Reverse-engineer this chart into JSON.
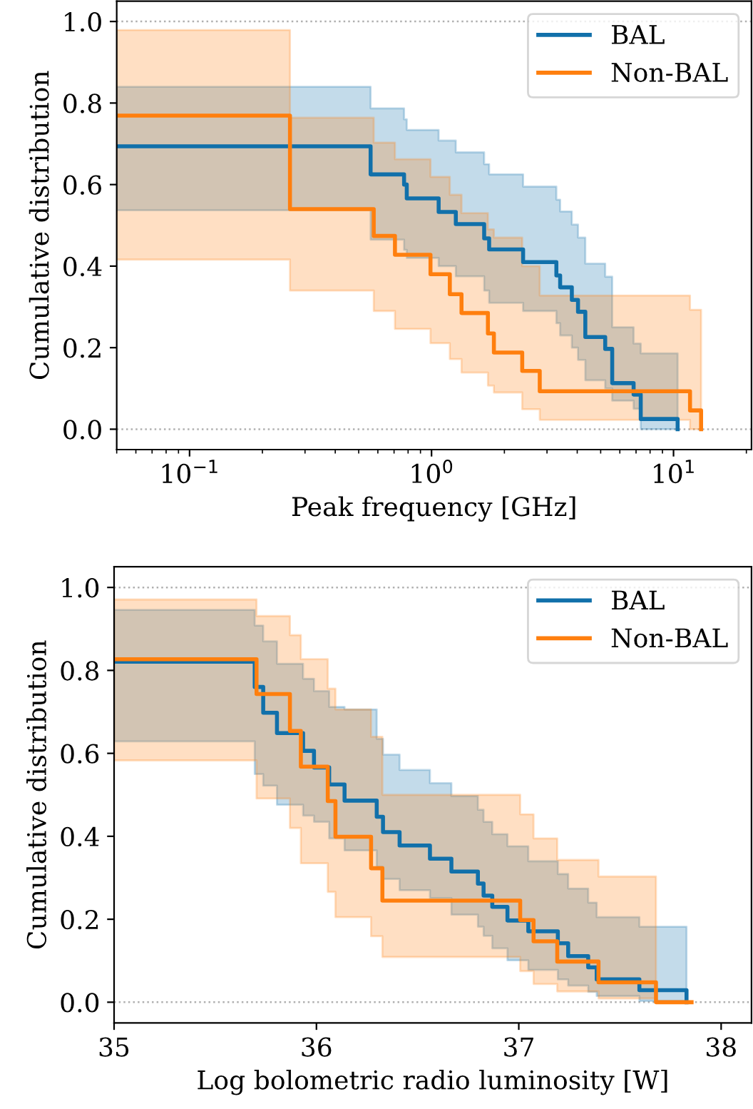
{
  "chart_data": [
    {
      "type": "step",
      "xlabel": "Peak frequency [GHz]",
      "ylabel": "Cumulative distribution",
      "log": "x",
      "legend": "top right",
      "xlim": [
        0.05,
        21
      ],
      "xticks": [
        {
          "value": 0.1,
          "label": "10$^{−1}$"
        },
        {
          "value": 1,
          "label": "10$^{0}$"
        },
        {
          "value": 10,
          "label": "10$^{1}$"
        }
      ],
      "ylim": [
        -0.05,
        1.05
      ],
      "yticks": [
        {
          "value": 0,
          "label": "0.0"
        },
        {
          "value": 0.2,
          "label": "0.2"
        },
        {
          "value": 0.4,
          "label": "0.4"
        },
        {
          "value": 0.6,
          "label": "0.6"
        },
        {
          "value": 0.8,
          "label": "0.8"
        },
        {
          "value": 1,
          "label": "1.0"
        }
      ],
      "ref_lines": [
        {
          "axis": "y",
          "value": 0,
          "color": "#b0b0b0",
          "line_style": "dotted"
        },
        {
          "axis": "y",
          "value": 1,
          "color": "#b0b0b0",
          "line_style": "dotted"
        }
      ],
      "series": [
        {
          "name": "BAL",
          "color": "#1170aa",
          "x": [
            0.05,
            0.56,
            0.77,
            0.79,
            1.07,
            1.26,
            1.65,
            1.73,
            2.39,
            3.28,
            3.4,
            3.8,
            4.03,
            4.32,
            5.22,
            5.58,
            6.84,
            7.32,
            10.4
          ],
          "values": [
            0.694,
            0.625,
            0.6,
            0.566,
            0.533,
            0.503,
            0.468,
            0.441,
            0.41,
            0.377,
            0.348,
            0.317,
            0.288,
            0.226,
            0.197,
            0.113,
            0.085,
            0.025,
            0.0
          ],
          "upper": [
            0.84,
            0.787,
            0.76,
            0.734,
            0.708,
            0.679,
            0.65,
            0.625,
            0.595,
            0.563,
            0.534,
            0.502,
            0.47,
            0.406,
            0.374,
            0.25,
            0.21,
            0.186,
            0.0
          ],
          "lower": [
            0.537,
            0.465,
            0.44,
            0.42,
            0.4,
            0.375,
            0.34,
            0.31,
            0.29,
            0.26,
            0.23,
            0.2,
            0.17,
            0.12,
            0.1,
            0.07,
            0.05,
            0.0,
            0.0
          ]
        },
        {
          "name": "Non-BAL",
          "color": "#ff7f0e",
          "x": [
            0.05,
            0.26,
            0.577,
            0.706,
            0.99,
            1.19,
            1.33,
            1.71,
            1.81,
            2.37,
            2.8,
            11.7,
            13.0
          ],
          "values": [
            0.769,
            0.54,
            0.474,
            0.428,
            0.38,
            0.331,
            0.285,
            0.235,
            0.188,
            0.143,
            0.093,
            0.046,
            0.0
          ],
          "upper": [
            0.979,
            0.764,
            0.703,
            0.662,
            0.619,
            0.575,
            0.53,
            0.49,
            0.47,
            0.4,
            0.328,
            0.293,
            0.0
          ],
          "lower": [
            0.416,
            0.34,
            0.29,
            0.246,
            0.211,
            0.172,
            0.139,
            0.107,
            0.09,
            0.049,
            0.023,
            0.0,
            0.0
          ]
        }
      ]
    },
    {
      "type": "step",
      "xlabel": "Log bolometric radio luminosity [W]",
      "ylabel": "Cumulative distribution",
      "legend": "top right",
      "xlim": [
        35,
        38.15
      ],
      "xticks": [
        35,
        36,
        37,
        38
      ],
      "ylim": [
        -0.05,
        1.05
      ],
      "yticks": [
        {
          "value": 0,
          "label": "0.0"
        },
        {
          "value": 0.2,
          "label": "0.2"
        },
        {
          "value": 0.4,
          "label": "0.4"
        },
        {
          "value": 0.6,
          "label": "0.6"
        },
        {
          "value": 0.8,
          "label": "0.8"
        },
        {
          "value": 1,
          "label": "1.0"
        }
      ],
      "ref_lines": [
        {
          "axis": "y",
          "value": 0,
          "color": "#b0b0b0",
          "line_style": "dotted"
        },
        {
          "axis": "y",
          "value": 1,
          "color": "#b0b0b0",
          "line_style": "dotted"
        }
      ],
      "series": [
        {
          "name": "BAL",
          "color": "#1170aa",
          "x": [
            35,
            35.695,
            35.737,
            35.805,
            35.934,
            35.988,
            36.063,
            36.139,
            36.298,
            36.329,
            36.411,
            36.561,
            36.667,
            36.798,
            36.826,
            36.869,
            36.944,
            37.047,
            37.193,
            37.244,
            37.343,
            37.385,
            37.596,
            37.829
          ],
          "values": [
            0.821,
            0.76,
            0.698,
            0.649,
            0.606,
            0.566,
            0.525,
            0.486,
            0.447,
            0.41,
            0.378,
            0.346,
            0.315,
            0.286,
            0.257,
            0.23,
            0.197,
            0.171,
            0.142,
            0.111,
            0.084,
            0.055,
            0.029,
            0.0
          ],
          "upper": [
            0.946,
            0.908,
            0.87,
            0.816,
            0.78,
            0.75,
            0.712,
            0.706,
            0.635,
            0.597,
            0.56,
            0.528,
            0.497,
            0.464,
            0.435,
            0.405,
            0.376,
            0.34,
            0.309,
            0.274,
            0.24,
            0.205,
            0.182,
            0.0
          ],
          "lower": [
            0.629,
            0.55,
            0.522,
            0.476,
            0.45,
            0.435,
            0.395,
            0.366,
            0.326,
            0.297,
            0.27,
            0.251,
            0.211,
            0.182,
            0.16,
            0.13,
            0.101,
            0.078,
            0.055,
            0.04,
            0.025,
            0.015,
            0.003,
            0.0
          ]
        },
        {
          "name": "Non-BAL",
          "color": "#ff7f0e",
          "x": [
            35,
            35.704,
            35.869,
            35.923,
            36.056,
            36.094,
            36.27,
            36.326,
            37.007,
            37.073,
            37.19,
            37.394,
            37.678,
            37.854
          ],
          "values": [
            0.827,
            0.743,
            0.654,
            0.568,
            0.485,
            0.399,
            0.323,
            0.245,
            0.198,
            0.147,
            0.098,
            0.048,
            0.0,
            0.0
          ],
          "upper": [
            0.971,
            0.931,
            0.885,
            0.827,
            0.756,
            0.706,
            0.64,
            0.5,
            0.453,
            0.395,
            0.343,
            0.303,
            0.0,
            0.0
          ],
          "lower": [
            0.583,
            0.491,
            0.42,
            0.335,
            0.266,
            0.205,
            0.159,
            0.109,
            0.075,
            0.044,
            0.026,
            0.009,
            0.0,
            0.0
          ]
        }
      ]
    }
  ]
}
